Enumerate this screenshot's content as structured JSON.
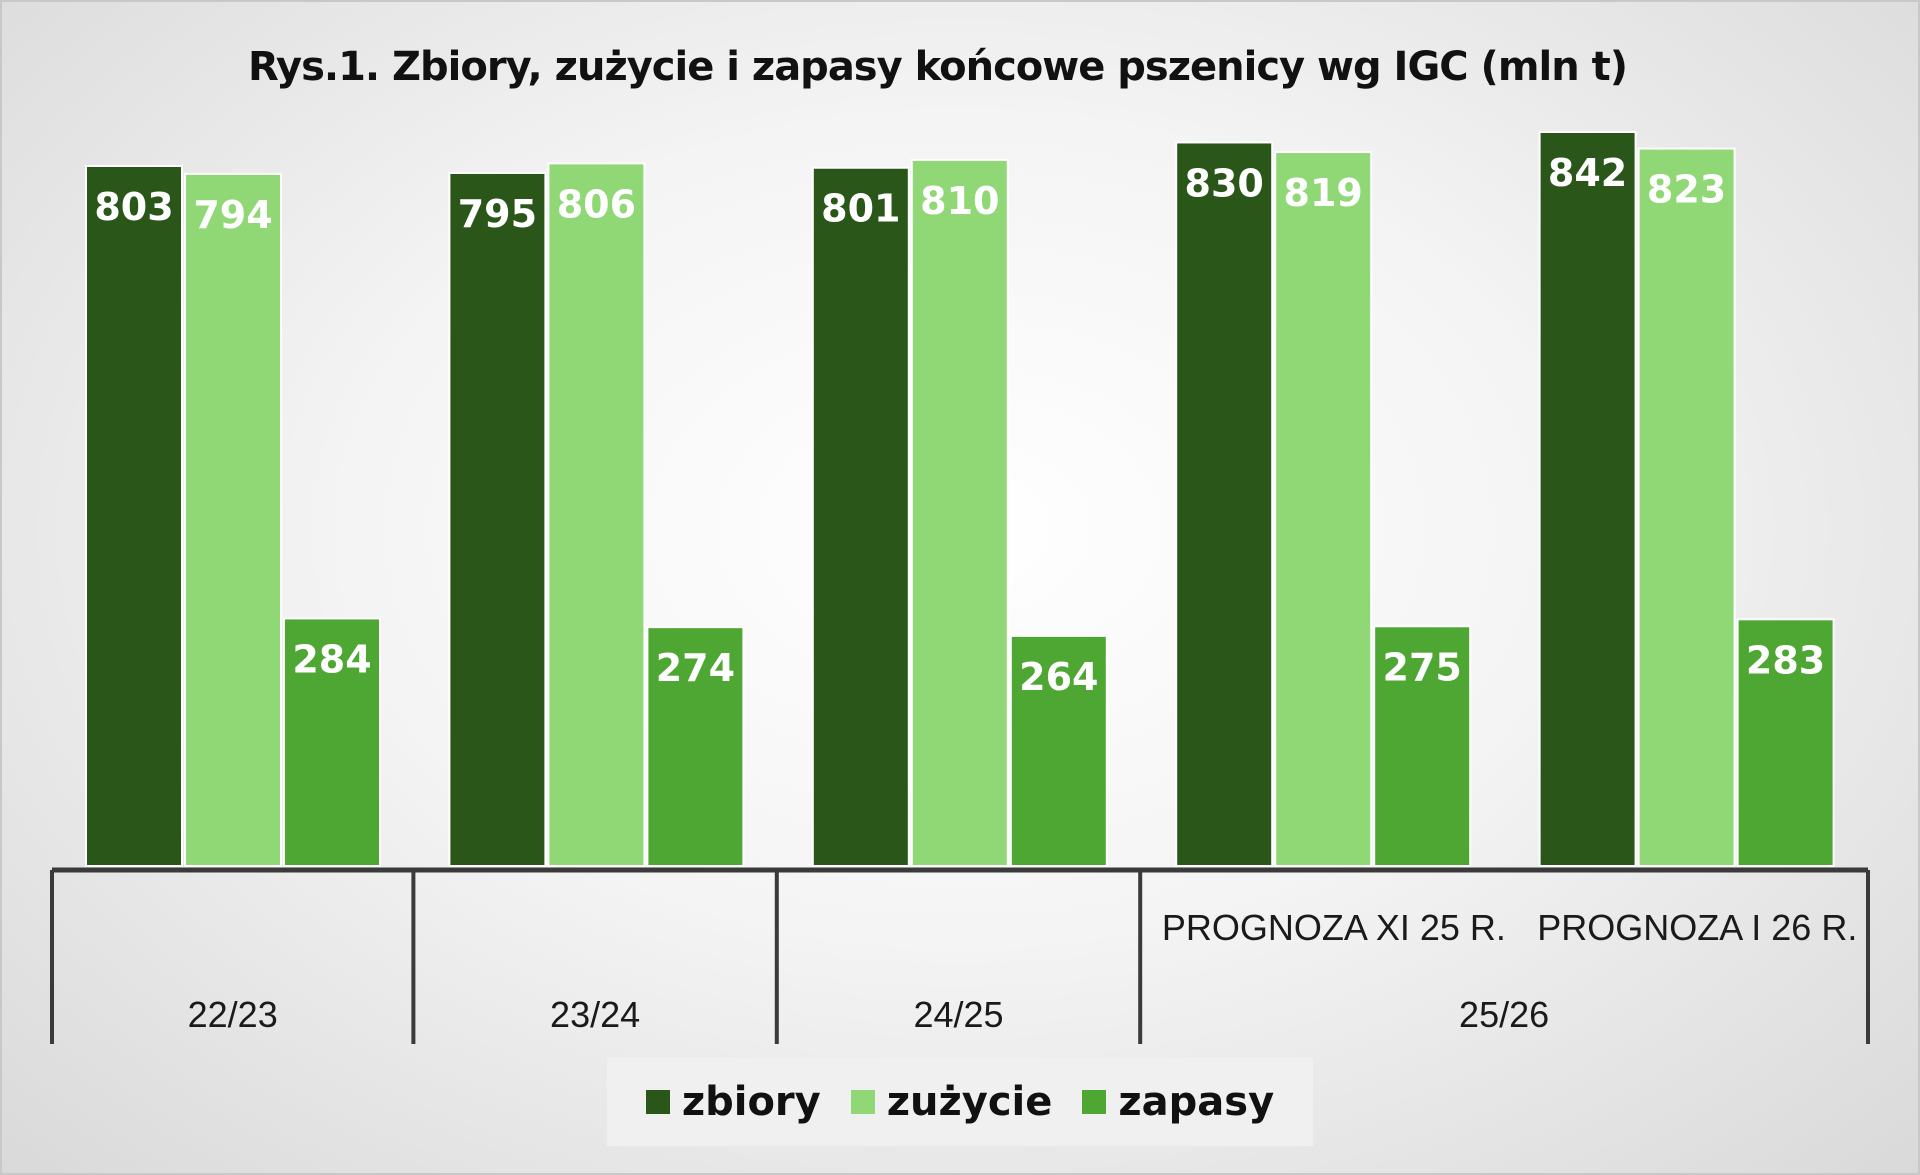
{
  "chart_data": {
    "type": "bar",
    "title": "Rys.1. Zbiory, zużycie i zapasy końcowe pszenicy wg IGC (mln t)",
    "groups": [
      "22/23",
      "23/24",
      "24/25",
      "25/26"
    ],
    "categories": [
      "",
      "",
      "",
      "PROGNOZA XI 25 R.",
      "PROGNOZA I 26 R."
    ],
    "category_group": [
      0,
      1,
      2,
      3,
      3
    ],
    "series": [
      {
        "name": "zbiory",
        "color": "#2a5719",
        "values": [
          803,
          795,
          801,
          830,
          842
        ]
      },
      {
        "name": "zużycie",
        "color": "#90d876",
        "values": [
          794,
          806,
          810,
          819,
          823
        ]
      },
      {
        "name": "zapasy",
        "color": "#4ea732",
        "values": [
          284,
          274,
          264,
          275,
          283
        ]
      }
    ],
    "legend_position": "bottom",
    "grid": false,
    "ylim": [
      0,
      842
    ]
  }
}
